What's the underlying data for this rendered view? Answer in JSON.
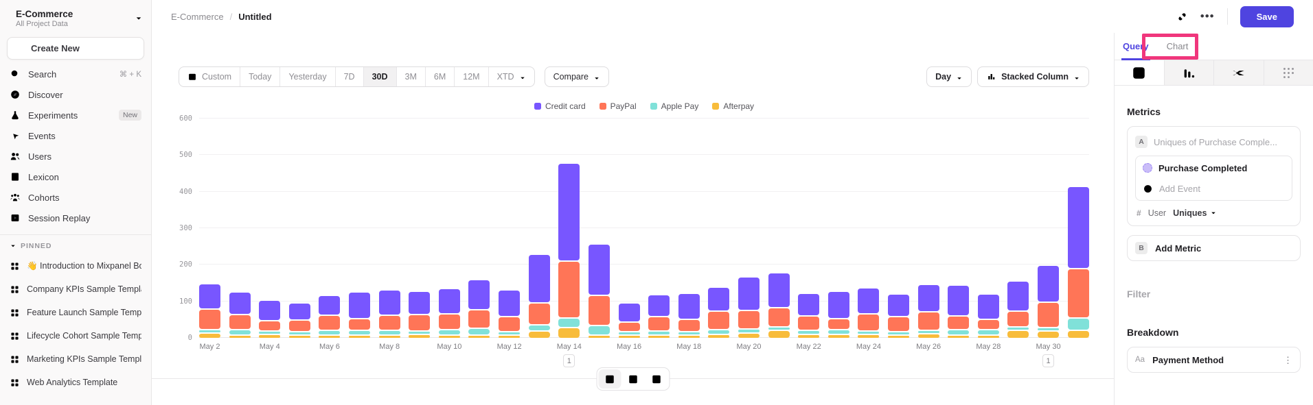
{
  "sidebar": {
    "project": {
      "name": "E-Commerce",
      "subtitle": "All Project Data"
    },
    "create_new": "Create New",
    "items": [
      {
        "label": "Search",
        "icon": "search",
        "shortcut": "⌘ + K"
      },
      {
        "label": "Discover",
        "icon": "discover"
      },
      {
        "label": "Experiments",
        "icon": "experiments",
        "badge": "New"
      },
      {
        "label": "Events",
        "icon": "events"
      },
      {
        "label": "Users",
        "icon": "users"
      },
      {
        "label": "Lexicon",
        "icon": "lexicon"
      },
      {
        "label": "Cohorts",
        "icon": "cohorts"
      },
      {
        "label": "Session Replay",
        "icon": "session-replay"
      }
    ],
    "pinned_header": "PINNED",
    "pinned": [
      "👋 Introduction to Mixpanel Boards",
      "Company KPIs Sample Template",
      "Feature Launch Sample Template",
      "Lifecycle Cohort Sample Template",
      "Marketing KPIs Sample Template",
      "Web Analytics Template"
    ]
  },
  "topbar": {
    "breadcrumb": [
      "E-Commerce",
      "Untitled"
    ],
    "save_label": "Save"
  },
  "toolbar": {
    "ranges": [
      "Custom",
      "Today",
      "Yesterday",
      "7D",
      "30D",
      "3M",
      "6M",
      "12M",
      "XTD"
    ],
    "selected_range": "30D",
    "compare_label": "Compare",
    "granularity": "Day",
    "chart_type": "Stacked Column"
  },
  "chart_data": {
    "type": "bar",
    "stacked": true,
    "title": "",
    "xlabel": "",
    "ylabel": "",
    "ylim": [
      0,
      600
    ],
    "yticks": [
      0,
      100,
      200,
      300,
      400,
      500,
      600
    ],
    "grid": true,
    "legend_position": "top-center",
    "categories": [
      "May 2",
      "May 3",
      "May 4",
      "May 5",
      "May 6",
      "May 7",
      "May 8",
      "May 9",
      "May 10",
      "May 11",
      "May 12",
      "May 13",
      "May 14",
      "May 15",
      "May 16",
      "May 17",
      "May 18",
      "May 19",
      "May 20",
      "May 21",
      "May 22",
      "May 23",
      "May 24",
      "May 25",
      "May 26",
      "May 27",
      "May 28",
      "May 29",
      "May 30",
      "May 31"
    ],
    "x_tick_labels": [
      "May 2",
      "May 4",
      "May 6",
      "May 8",
      "May 10",
      "May 12",
      "May 14",
      "May 16",
      "May 18",
      "May 20",
      "May 22",
      "May 24",
      "May 26",
      "May 28",
      "May 30"
    ],
    "series": [
      {
        "name": "Credit card",
        "color": "#7856FF",
        "values": [
          68,
          62,
          56,
          47,
          55,
          73,
          70,
          63,
          70,
          82,
          72,
          132,
          268,
          141,
          52,
          60,
          72,
          66,
          91,
          96,
          62,
          75,
          72,
          61,
          75,
          84,
          69,
          82,
          100,
          226
        ]
      },
      {
        "name": "PayPal",
        "color": "#FF7557",
        "values": [
          57,
          42,
          27,
          32,
          41,
          33,
          41,
          45,
          43,
          52,
          42,
          60,
          155,
          82,
          27,
          39,
          34,
          51,
          50,
          52,
          39,
          29,
          46,
          41,
          49,
          38,
          28,
          43,
          70,
          135
        ]
      },
      {
        "name": "Apple Pay",
        "color": "#80E1D9",
        "values": [
          8,
          15,
          8,
          5,
          12,
          12,
          12,
          5,
          15,
          18,
          8,
          18,
          27,
          26,
          8,
          11,
          7,
          12,
          12,
          10,
          11,
          13,
          6,
          7,
          5,
          15,
          15,
          10,
          6,
          34
        ]
      },
      {
        "name": "Afterpay",
        "color": "#F8BC3B",
        "values": [
          15,
          5,
          12,
          8,
          10,
          10,
          10,
          12,
          5,
          8,
          3,
          20,
          30,
          8,
          7,
          10,
          8,
          12,
          15,
          22,
          12,
          12,
          12,
          10,
          14,
          3,
          6,
          22,
          21,
          22
        ]
      }
    ],
    "stack_order_bottom_to_top": [
      "Afterpay",
      "Apple Pay",
      "PayPal",
      "Credit card"
    ],
    "annotations": [
      {
        "x": "May 14",
        "label": "1"
      },
      {
        "x": "May 30",
        "label": "1"
      }
    ]
  },
  "right_panel": {
    "tabs": [
      {
        "label": "Query",
        "active": true
      },
      {
        "label": "Chart",
        "active": false
      }
    ],
    "highlight_color": "#f0367c",
    "metrics": {
      "title": "Metrics",
      "row_badge": "A",
      "row_label": "Uniques of Purchase Comple...",
      "event_name": "Purchase Completed",
      "add_event": "Add Event",
      "agg_prefix": "#",
      "agg_entity": "User",
      "agg_type": "Uniques",
      "add_metric_badge": "B",
      "add_metric": "Add Metric"
    },
    "filter_title": "Filter",
    "breakdown_title": "Breakdown",
    "breakdown_item": {
      "icon_label": "Aa",
      "label": "Payment Method"
    }
  },
  "colors": {
    "accent": "#4f44e0",
    "highlight_pink": "#f0367c",
    "sidebar_bg": "#faf9f9",
    "border": "#e8e7e9"
  }
}
